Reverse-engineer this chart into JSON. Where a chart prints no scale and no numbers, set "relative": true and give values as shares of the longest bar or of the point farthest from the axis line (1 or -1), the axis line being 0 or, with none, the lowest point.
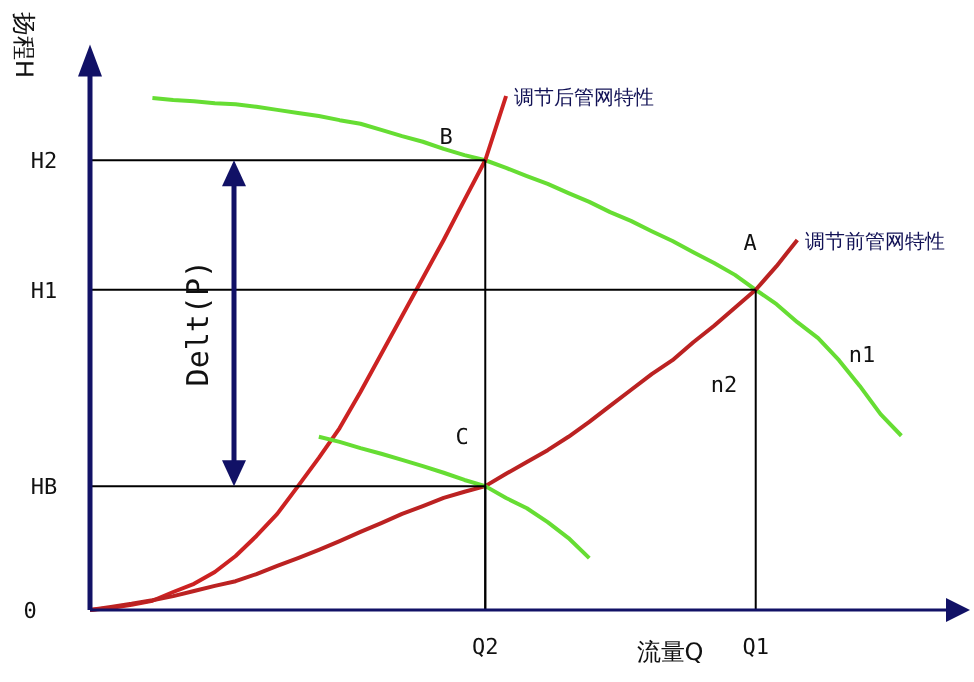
{
  "chart_data": {
    "type": "line",
    "relative": true,
    "xlabel": "流量Q",
    "ylabel": "扬程H",
    "marker": "none",
    "line_style": "solid",
    "categories": [
      null,
      null,
      null,
      null,
      null,
      null,
      null,
      null,
      null,
      null,
      null,
      null,
      null,
      null,
      null,
      null,
      null,
      null,
      null,
      "Q2",
      null,
      null,
      null,
      null,
      null,
      null,
      null,
      null,
      null,
      null,
      null,
      null,
      "Q1",
      null,
      null,
      null,
      null,
      null,
      null,
      null,
      null,
      null,
      null
    ],
    "series": [
      {
        "color": "#66dd33",
        "values": [
          null,
          null,
          null,
          0.996,
          0.992,
          0.99,
          0.986,
          0.984,
          0.979,
          0.973,
          0.967,
          0.961,
          0.953,
          0.946,
          0.934,
          0.922,
          0.911,
          0.897,
          0.885,
          0.875,
          0.86,
          0.844,
          0.829,
          0.811,
          0.794,
          0.774,
          0.757,
          0.737,
          0.718,
          0.696,
          0.675,
          0.652,
          0.623,
          0.595,
          0.56,
          0.529,
          0.486,
          0.436,
          0.381,
          0.339,
          null,
          null,
          null
        ]
      },
      {
        "name": "调节后管网特性",
        "color": "#cc2222",
        "values": [
          0,
          0.004,
          0.01,
          0.018,
          0.035,
          0.051,
          0.074,
          0.105,
          0.144,
          0.187,
          0.241,
          0.296,
          0.354,
          0.424,
          0.498,
          0.572,
          0.646,
          0.72,
          0.798,
          0.875,
          1.0,
          null,
          null,
          null,
          null,
          null,
          null,
          null,
          null,
          null,
          null,
          null,
          null,
          null,
          null,
          null,
          null,
          null,
          null,
          null,
          null,
          null,
          null
        ]
      },
      {
        "name": "调节前管网特性",
        "color": "#bb2222",
        "values": [
          0,
          0.006,
          0.012,
          0.019,
          0.027,
          0.037,
          0.047,
          0.056,
          0.07,
          0.086,
          0.101,
          0.117,
          0.134,
          0.152,
          0.169,
          0.187,
          0.202,
          0.218,
          0.23,
          0.241,
          0.265,
          0.288,
          0.311,
          0.337,
          0.366,
          0.397,
          0.428,
          0.459,
          0.486,
          0.521,
          0.553,
          0.588,
          0.623,
          0.669,
          0.72,
          null,
          null,
          null,
          null,
          null,
          null,
          null,
          null
        ]
      },
      {
        "color": "#66dd33",
        "values": [
          null,
          null,
          null,
          null,
          null,
          null,
          null,
          null,
          null,
          null,
          null,
          0.337,
          0.327,
          0.315,
          0.304,
          0.292,
          0.28,
          0.267,
          0.253,
          0.241,
          0.218,
          0.198,
          0.171,
          0.14,
          0.101,
          null,
          null,
          null,
          null,
          null,
          null,
          null,
          null,
          null,
          null,
          null,
          null,
          null,
          null,
          null,
          null,
          null,
          null
        ]
      },
      {
        "name": "H2",
        "color": "#000000",
        "values": [
          0.875,
          0.875,
          0.875,
          0.875,
          0.875,
          0.875,
          0.875,
          0.875,
          0.875,
          0.875,
          0.875,
          0.875,
          0.875,
          0.875,
          0.875,
          0.875,
          0.875,
          0.875,
          0.875,
          0.875,
          null,
          null,
          null,
          null,
          null,
          null,
          null,
          null,
          null,
          null,
          null,
          null,
          null,
          null,
          null,
          null,
          null,
          null,
          null,
          null,
          null,
          null,
          null
        ]
      },
      {
        "name": "H1",
        "color": "#000000",
        "values": [
          0.623,
          0.623,
          0.623,
          0.623,
          0.623,
          0.623,
          0.623,
          0.623,
          0.623,
          0.623,
          0.623,
          0.623,
          0.623,
          0.623,
          0.623,
          0.623,
          0.623,
          0.623,
          0.623,
          0.623,
          0.623,
          0.623,
          0.623,
          0.623,
          0.623,
          0.623,
          0.623,
          0.623,
          0.623,
          0.623,
          0.623,
          0.623,
          0.623,
          null,
          null,
          null,
          null,
          null,
          null,
          null,
          null,
          null,
          null
        ]
      },
      {
        "name": "HB",
        "color": "#000000",
        "values": [
          0.241,
          0.241,
          0.241,
          0.241,
          0.241,
          0.241,
          0.241,
          0.241,
          0.241,
          0.241,
          0.241,
          0.241,
          0.241,
          0.241,
          0.241,
          0.241,
          0.241,
          0.241,
          0.241,
          0.241,
          null,
          null,
          null,
          null,
          null,
          null,
          null,
          null,
          null,
          null,
          null,
          null,
          null,
          null,
          null,
          null,
          null,
          null,
          null,
          null,
          null,
          null,
          null
        ]
      }
    ],
    "annotations": [
      "0",
      "A",
      "B",
      "C",
      "n1",
      "n2",
      "Delt(P)"
    ]
  }
}
